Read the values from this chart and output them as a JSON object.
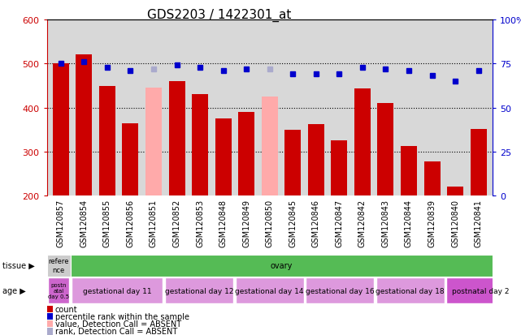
{
  "title": "GDS2203 / 1422301_at",
  "samples": [
    "GSM120857",
    "GSM120854",
    "GSM120855",
    "GSM120856",
    "GSM120851",
    "GSM120852",
    "GSM120853",
    "GSM120848",
    "GSM120849",
    "GSM120850",
    "GSM120845",
    "GSM120846",
    "GSM120847",
    "GSM120842",
    "GSM120843",
    "GSM120844",
    "GSM120839",
    "GSM120840",
    "GSM120841"
  ],
  "bar_values": [
    500,
    520,
    448,
    365,
    445,
    460,
    430,
    375,
    390,
    425,
    350,
    363,
    325,
    444,
    410,
    312,
    278,
    220,
    352
  ],
  "bar_absent": [
    false,
    false,
    false,
    false,
    true,
    false,
    false,
    false,
    false,
    true,
    false,
    false,
    false,
    false,
    false,
    false,
    false,
    false,
    false
  ],
  "rank_values": [
    75,
    76,
    73,
    71,
    72,
    74,
    73,
    71,
    72,
    72,
    69,
    69,
    69,
    73,
    72,
    71,
    68,
    65,
    71
  ],
  "rank_absent": [
    false,
    false,
    false,
    false,
    true,
    false,
    false,
    false,
    false,
    true,
    false,
    false,
    false,
    false,
    false,
    false,
    false,
    false,
    false
  ],
  "ylim_left": [
    200,
    600
  ],
  "ylim_right": [
    0,
    100
  ],
  "yticks_left": [
    200,
    300,
    400,
    500,
    600
  ],
  "yticks_right": [
    0,
    25,
    50,
    75,
    100
  ],
  "bar_color": "#cc0000",
  "bar_absent_color": "#ffaaaa",
  "rank_color": "#0000cc",
  "rank_absent_color": "#aaaacc",
  "bg_color": "#d8d8d8",
  "plot_bg_color": "#d8d8d8",
  "left_axis_color": "#cc0000",
  "right_axis_color": "#0000cc",
  "xlabel_fontsize": 7,
  "title_fontsize": 11,
  "tissue_row": [
    {
      "label": "refere\nnce",
      "color": "#cccccc",
      "span": 1
    },
    {
      "label": "ovary",
      "color": "#55bb55",
      "span": 18
    }
  ],
  "age_row": [
    {
      "label": "postn\natal\nday 0.5",
      "color": "#cc66cc",
      "span": 1
    },
    {
      "label": "gestational day 11",
      "color": "#dd99dd",
      "span": 4
    },
    {
      "label": "gestational day 12",
      "color": "#dd99dd",
      "span": 3
    },
    {
      "label": "gestational day 14",
      "color": "#dd99dd",
      "span": 3
    },
    {
      "label": "gestational day 16",
      "color": "#dd99dd",
      "span": 3
    },
    {
      "label": "gestational day 18",
      "color": "#dd99dd",
      "span": 3
    },
    {
      "label": "postnatal day 2",
      "color": "#cc55cc",
      "span": 3
    }
  ],
  "legend_items": [
    {
      "label": "count",
      "color": "#cc0000"
    },
    {
      "label": "percentile rank within the sample",
      "color": "#0000cc"
    },
    {
      "label": "value, Detection Call = ABSENT",
      "color": "#ffaaaa"
    },
    {
      "label": "rank, Detection Call = ABSENT",
      "color": "#aaaacc"
    }
  ]
}
